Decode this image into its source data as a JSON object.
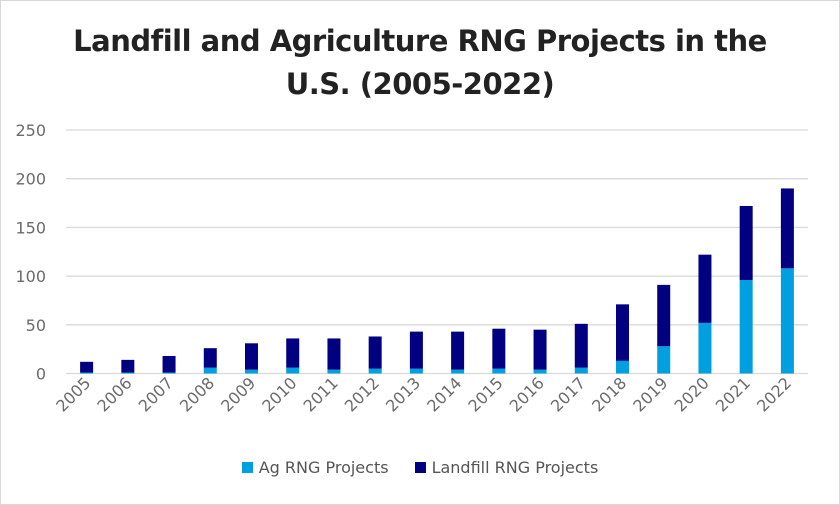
{
  "chart_data": {
    "type": "bar",
    "stacked": true,
    "title": "Landfill and Agriculture RNG Projects in the U.S. (2005-2022)",
    "title_lines": [
      "Landfill and Agriculture RNG Projects in the",
      "U.S. (2005-2022)"
    ],
    "xlabel": "",
    "ylabel": "",
    "ylim": [
      0,
      250
    ],
    "yticks": [
      0,
      50,
      100,
      150,
      200,
      250
    ],
    "grid": true,
    "legend_position": "bottom",
    "categories": [
      "2005",
      "2006",
      "2007",
      "2008",
      "2009",
      "2010",
      "2011",
      "2012",
      "2013",
      "2014",
      "2015",
      "2016",
      "2017",
      "2018",
      "2019",
      "2020",
      "2021",
      "2022"
    ],
    "series": [
      {
        "name": "Ag RNG Projects",
        "color": "#009fdf",
        "values": [
          1,
          1,
          1,
          6,
          4,
          6,
          4,
          5,
          5,
          4,
          5,
          4,
          6,
          13,
          28,
          52,
          96,
          108
        ]
      },
      {
        "name": "Landfill RNG Projects",
        "color": "#000080",
        "values": [
          11,
          13,
          17,
          20,
          27,
          30,
          32,
          33,
          38,
          39,
          41,
          41,
          45,
          58,
          63,
          70,
          76,
          82
        ]
      }
    ]
  }
}
